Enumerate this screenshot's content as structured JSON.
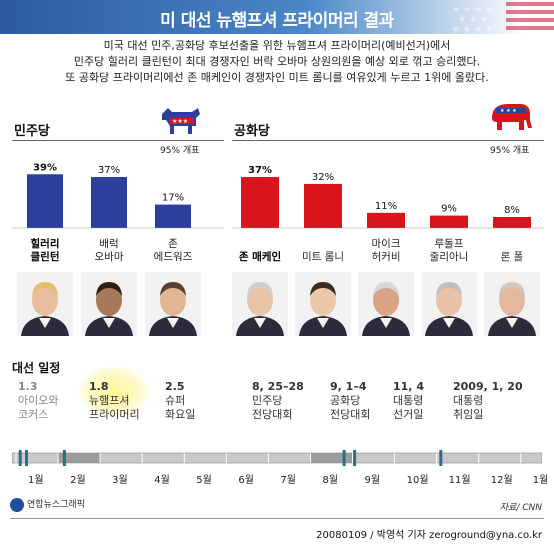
{
  "header": {
    "title": "미 대선 뉴햄프셔 프라이머리 결과"
  },
  "summary": [
    "미국 대선 민주,공화당 후보선출을 위한 뉴햄프셔 프라이머리(예비선거)에서",
    "민주당 힐러리 클린턴이 최대 경쟁자인 버락 오바마 상원의원을 예상 외로 꺾고 승리했다.",
    "또 공화당 프라이머리에선 존 매케인이 경쟁자인 미트 롬니를 여유있게 누르고 1위에 올랐다."
  ],
  "chart_data": [
    {
      "type": "bar",
      "title": "민주당",
      "note": "95% 개표",
      "categories": [
        "힐러리 클린턴",
        "배럭 오바마",
        "존 에드워즈"
      ],
      "values": [
        39,
        37,
        17
      ],
      "value_labels": [
        "39%",
        "37%",
        "17%"
      ],
      "winner_index": 0,
      "color": "#2a3f9e",
      "ylim": [
        0,
        45
      ]
    },
    {
      "type": "bar",
      "title": "공화당",
      "note": "95% 개표",
      "categories": [
        "존 매케인",
        "미트 롬니",
        "마이크 허커비",
        "루돌프 줄리아니",
        "론 폴"
      ],
      "values": [
        37,
        32,
        11,
        9,
        8
      ],
      "value_labels": [
        "37%",
        "32%",
        "11%",
        "9%",
        "8%"
      ],
      "winner_index": 0,
      "color": "#d8141c",
      "ylim": [
        0,
        45
      ]
    }
  ],
  "candidates": {
    "dem": [
      {
        "line1": "힐러리",
        "line2": "클린턴",
        "bold": true
      },
      {
        "line1": "배럭",
        "line2": "오바마",
        "bold": false
      },
      {
        "line1": "존",
        "line2": "에드워즈",
        "bold": false
      }
    ],
    "rep": [
      {
        "line1": "존 매케인",
        "line2": "",
        "bold": true
      },
      {
        "line1": "미트 롬니",
        "line2": "",
        "bold": false
      },
      {
        "line1": "마이크",
        "line2": "허커비",
        "bold": false
      },
      {
        "line1": "루돌프",
        "line2": "줄리아니",
        "bold": false
      },
      {
        "line1": "론 폴",
        "line2": "",
        "bold": false
      }
    ]
  },
  "schedule": {
    "title": "대선 일정",
    "events": [
      {
        "date": "1.3",
        "line1": "아이오와",
        "line2": "코커스",
        "past": true
      },
      {
        "date": "1.8",
        "line1": "뉴햄프셔",
        "line2": "프라이머리",
        "past": false,
        "current": true
      },
      {
        "date": "2.5",
        "line1": "슈퍼",
        "line2": "화요일",
        "past": false
      },
      {
        "date": "8, 25–28",
        "line1": "민주당",
        "line2": "전당대회",
        "past": false
      },
      {
        "date": "9, 1–4",
        "line1": "공화당",
        "line2": "전당대회",
        "past": false
      },
      {
        "date": "11, 4",
        "line1": "대통령",
        "line2": "선거일",
        "past": false
      },
      {
        "date": "2009, 1, 20",
        "line1": "대통령",
        "line2": "취임일",
        "past": false
      }
    ],
    "months": [
      "1월",
      "2월",
      "3월",
      "4월",
      "5월",
      "6월",
      "7월",
      "8월",
      "9월",
      "10월",
      "11월",
      "12월",
      "1월"
    ]
  },
  "footer": {
    "logo": "연합뉴스그래픽",
    "source": "자료/ CNN",
    "credit": "20080109 / 박영석 기자 zeroground@yna.co.kr"
  },
  "colors": {
    "dem": "#2a3f9e",
    "rep": "#d8141c",
    "header": "#2d5aa0",
    "timeline": "#2a6f84"
  }
}
